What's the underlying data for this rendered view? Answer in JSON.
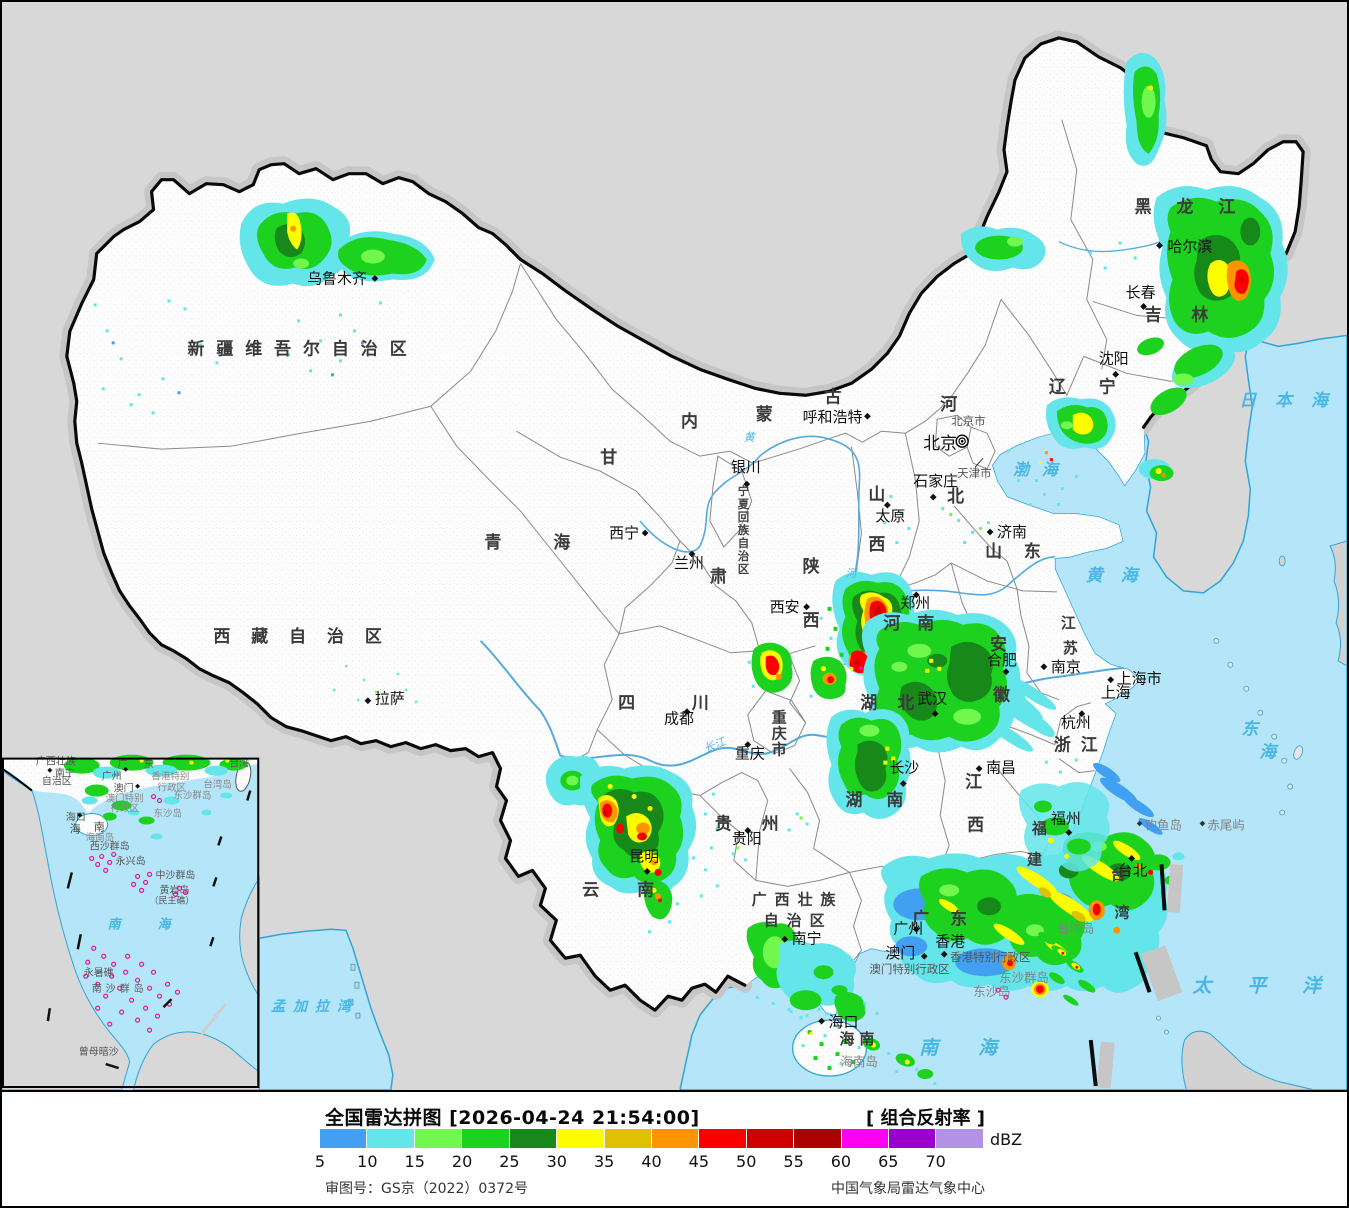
{
  "header": {
    "title": "全国雷达拼图 [2026-04-24 21:54:00]",
    "product": "[ 组合反射率 ]",
    "unit": "dBZ",
    "review": "审图号：GS京（2022）0372号",
    "agency": "中国气象局雷达气象中心"
  },
  "colorbar": {
    "values": [
      "5",
      "10",
      "15",
      "20",
      "25",
      "30",
      "35",
      "40",
      "45",
      "50",
      "55",
      "60",
      "65",
      "70"
    ],
    "colors": [
      "#41a0f1",
      "#63e5ea",
      "#72f74e",
      "#1dd21f",
      "#17891a",
      "#fdfd00",
      "#e0c000",
      "#ff9400",
      "#fc0000",
      "#d00000",
      "#aa0000",
      "#fb00f1",
      "#9b00cd",
      "#b392e6"
    ]
  },
  "map": {
    "provinces": {
      "heilongjiang": "黑龙江",
      "jilin": "吉林",
      "liaoning": "辽宁",
      "neimenggu": [
        "内",
        "蒙",
        "古"
      ],
      "xinjiang": "新疆维吾尔自治区",
      "xizang": "西藏自治区",
      "qinghai": "青海",
      "gansu": [
        "甘",
        "肃"
      ],
      "ningxia": [
        "宁",
        "夏",
        "回",
        "族",
        "自",
        "治",
        "区"
      ],
      "shaanxi": [
        "陕",
        "西"
      ],
      "shanxi": [
        "山",
        "西"
      ],
      "hebei": [
        "河",
        "北"
      ],
      "henan": "河南",
      "shandong": "山东",
      "jiangsu": [
        "江",
        "苏"
      ],
      "anhui": [
        "安",
        "徽"
      ],
      "hubei": "湖北",
      "hunan": "湖南",
      "jiangxi": [
        "江",
        "西"
      ],
      "zhejiang": "浙江",
      "fujian": [
        "福",
        "建"
      ],
      "taiwan": [
        "台",
        "湾"
      ],
      "guangdong": "广东",
      "guangxi1": "广西壮族",
      "guangxi2": "自治区",
      "yunnan": "云南",
      "guizhou": "贵州",
      "sichuan": "四川",
      "chongqing": [
        "重",
        "庆",
        "市"
      ],
      "hainan": "海南"
    },
    "cities": {
      "haerbin": "哈尔滨",
      "changchun": "长春",
      "shenyang": "沈阳",
      "wulumuqi": "乌鲁木齐",
      "huhehaote": "呼和浩特",
      "beijing": "北京",
      "beijingshi": "北京市",
      "tianjinshi": "天津市",
      "shijiazhuang": "石家庄",
      "taiyuan": "太原",
      "jinan": "济南",
      "yinchuan": "银川",
      "xining": "西宁",
      "lanzhou": "兰州",
      "xian": "西安",
      "zhengzhou": "郑州",
      "hefei": "合肥",
      "nanjing": "南京",
      "shanghaishi": "上海市",
      "shanghai": "上海",
      "hangzhou": "杭州",
      "wuhan": "武汉",
      "nanchang": "南昌",
      "changsha": "长沙",
      "fuzhou": "福州",
      "taibei": "台北",
      "guangzhou": "广州",
      "xianggang": "香港",
      "xianggangte": "香港特别行政区",
      "aomen": "澳门",
      "aomente": "澳门特别行政区",
      "nanning": "南宁",
      "guiyang": "贵阳",
      "kunming": "昆明",
      "chengdu": "成都",
      "chongqing": "重庆",
      "haikou": "海口",
      "lasa": "拉萨"
    },
    "seas": {
      "bohai": "渤海",
      "huanghai": "黄海",
      "riben": "日本海",
      "donghai": [
        "东",
        "海"
      ],
      "taipingyang": "太平洋",
      "nanhai": "南海",
      "mengjialawan": "孟加拉湾"
    },
    "islands": {
      "diaoyu": "钓鱼岛",
      "chiwei": "赤尾屿",
      "taiwandao": "台湾岛",
      "dongshaqundao": "东沙群岛",
      "dongshadao": "东沙岛",
      "hainandao": "海南岛"
    },
    "rivers": {
      "huang1": "黄",
      "huang2": "河",
      "chang": "长江"
    }
  },
  "inset": {
    "labels": {
      "guangxi1": "广西壮族",
      "guangxi2": "自治区",
      "nanning": "南宁",
      "guangdong": "广东",
      "guangzhou": "广州",
      "aomen": "澳门",
      "xianggangte": "香港特别",
      "xingzhengqu1": "行政区",
      "aomente": "澳门特别",
      "xingzhengqu2": "行政区",
      "taiwan": "台湾",
      "taiwandao": "台湾岛",
      "dongshaqundao": "东沙群岛",
      "dongshadao": "东沙岛",
      "haikou": "海口",
      "hainan": [
        "海",
        "南"
      ],
      "hainandao": "海南岛",
      "xisha": "西沙群岛",
      "yongxing": "永兴岛",
      "zhongsha": "中沙群岛",
      "huangyan": "黄岩岛",
      "minzhujiao": "（民主礁）",
      "nanhai": [
        "南",
        "海"
      ],
      "yongshu": "永暑礁",
      "nansha": "南沙群岛",
      "zengmu": "曾母暗沙"
    }
  }
}
